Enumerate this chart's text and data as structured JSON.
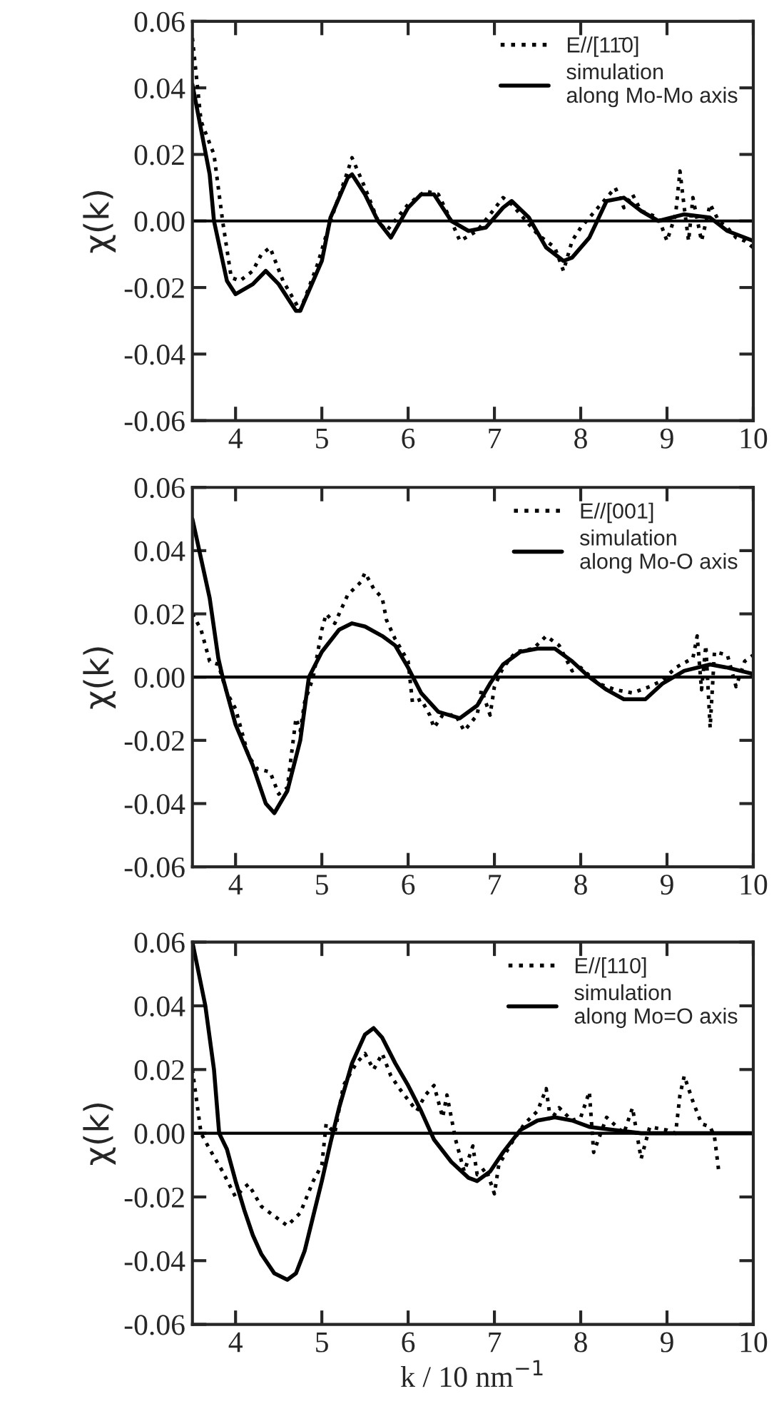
{
  "chart_data": [
    {
      "type": "line",
      "ylabel": "χ(k)",
      "xlim": [
        3.5,
        10
      ],
      "xticks": [
        4,
        5,
        6,
        7,
        8,
        9,
        10
      ],
      "ylim": [
        -0.06,
        0.06
      ],
      "yticks": [
        {
          "value": -0.06,
          "label": "-0.06"
        },
        {
          "value": -0.04,
          "label": "-0.04"
        },
        {
          "value": -0.02,
          "label": "-0.02"
        },
        {
          "value": 0,
          "label": "0.00"
        },
        {
          "value": 0.02,
          "label": "0.02"
        },
        {
          "value": 0.04,
          "label": "0.04"
        },
        {
          "value": 0.06,
          "label": "0.06"
        }
      ],
      "ref_lines": [
        {
          "axis": "y",
          "value": 0,
          "color": "#000000",
          "line_style": "solid"
        }
      ],
      "legend": "top right",
      "grid": false,
      "series": [
        {
          "name": "E//[11̄0]",
          "color": "#000000",
          "line_style": "dotted",
          "x": [
            3.5,
            3.6,
            3.75,
            3.85,
            3.95,
            4.05,
            4.2,
            4.3,
            4.4,
            4.55,
            4.75,
            4.95,
            5.1,
            5.3,
            5.35,
            5.5,
            5.65,
            5.75,
            6.0,
            6.2,
            6.35,
            6.5,
            6.6,
            6.8,
            7.1,
            7.2,
            7.5,
            7.7,
            7.8,
            7.9,
            8.0,
            8.2,
            8.4,
            8.5,
            8.6,
            8.7,
            8.9,
            9.0,
            9.1,
            9.15,
            9.2,
            9.25,
            9.3,
            9.4,
            9.5,
            9.6,
            9.7,
            9.8,
            9.9,
            10
          ],
          "values": [
            0.055,
            0.03,
            0.02,
            0.0,
            -0.017,
            -0.018,
            -0.015,
            -0.01,
            -0.008,
            -0.018,
            -0.027,
            -0.013,
            0.0,
            0.015,
            0.019,
            0.01,
            0.0,
            -0.003,
            0.005,
            0.009,
            0.008,
            0.0,
            -0.006,
            -0.003,
            0.007,
            0.005,
            -0.004,
            -0.008,
            -0.015,
            -0.006,
            -0.002,
            0.004,
            0.01,
            0.004,
            0.008,
            0.003,
            0.001,
            -0.006,
            0.002,
            0.015,
            0.004,
            -0.006,
            0.007,
            -0.006,
            0.005,
            0.0,
            -0.002,
            -0.005,
            -0.006,
            -0.008
          ]
        },
        {
          "name": "simulation\nalong Mo-Mo axis",
          "color": "#000000",
          "line_style": "solid",
          "x": [
            3.5,
            3.7,
            3.75,
            3.9,
            4.0,
            4.2,
            4.35,
            4.5,
            4.7,
            4.75,
            4.9,
            5.0,
            5.1,
            5.3,
            5.35,
            5.5,
            5.65,
            5.8,
            6.0,
            6.15,
            6.3,
            6.5,
            6.7,
            6.9,
            7.1,
            7.2,
            7.4,
            7.6,
            7.8,
            7.9,
            8.1,
            8.3,
            8.5,
            8.7,
            8.9,
            9.2,
            9.5,
            9.7,
            10
          ],
          "values": [
            0.041,
            0.014,
            0.0,
            -0.018,
            -0.022,
            -0.019,
            -0.015,
            -0.019,
            -0.027,
            -0.027,
            -0.018,
            -0.012,
            0.001,
            0.013,
            0.014,
            0.008,
            0.0,
            -0.005,
            0.004,
            0.008,
            0.008,
            0.0,
            -0.003,
            -0.002,
            0.004,
            0.006,
            0.001,
            -0.008,
            -0.012,
            -0.011,
            -0.005,
            0.006,
            0.007,
            0.003,
            0.0,
            0.002,
            0.001,
            -0.003,
            -0.006
          ]
        }
      ]
    },
    {
      "type": "line",
      "ylabel": "χ(k)",
      "xlim": [
        3.5,
        10
      ],
      "xticks": [
        4,
        5,
        6,
        7,
        8,
        9,
        10
      ],
      "ylim": [
        -0.06,
        0.06
      ],
      "yticks": [
        {
          "value": -0.06,
          "label": "-0.06"
        },
        {
          "value": -0.04,
          "label": "-0.04"
        },
        {
          "value": -0.02,
          "label": "-0.02"
        },
        {
          "value": 0,
          "label": "0.00"
        },
        {
          "value": 0.02,
          "label": "0.02"
        },
        {
          "value": 0.04,
          "label": "0.04"
        },
        {
          "value": 0.06,
          "label": "0.06"
        }
      ],
      "ref_lines": [
        {
          "axis": "y",
          "value": 0,
          "color": "#000000",
          "line_style": "solid"
        }
      ],
      "legend": "top right",
      "grid": false,
      "series": [
        {
          "name": "E//[001]",
          "color": "#000000",
          "line_style": "dotted",
          "x": [
            3.5,
            3.6,
            3.7,
            3.8,
            3.9,
            4.0,
            4.15,
            4.25,
            4.4,
            4.5,
            4.6,
            4.7,
            4.75,
            4.8,
            4.9,
            5.0,
            5.05,
            5.15,
            5.3,
            5.45,
            5.5,
            5.6,
            5.7,
            5.75,
            5.85,
            6.0,
            6.05,
            6.15,
            6.25,
            6.3,
            6.4,
            6.55,
            6.65,
            6.8,
            6.85,
            6.95,
            7.0,
            7.1,
            7.25,
            7.45,
            7.6,
            7.75,
            7.9,
            8.0,
            8.2,
            8.4,
            8.6,
            8.8,
            8.95,
            9.1,
            9.3,
            9.35,
            9.4,
            9.45,
            9.5,
            9.55,
            9.7,
            9.8,
            9.9,
            10
          ],
          "values": [
            0.02,
            0.015,
            0.005,
            0.004,
            -0.005,
            -0.01,
            -0.025,
            -0.029,
            -0.03,
            -0.037,
            -0.035,
            -0.013,
            -0.017,
            -0.008,
            0.0,
            0.015,
            0.02,
            0.017,
            0.026,
            0.03,
            0.033,
            0.028,
            0.025,
            0.018,
            0.012,
            0.005,
            -0.008,
            -0.007,
            -0.012,
            -0.016,
            -0.012,
            -0.012,
            -0.017,
            -0.012,
            -0.004,
            -0.012,
            -0.003,
            0.003,
            0.008,
            0.009,
            0.013,
            0.01,
            0.002,
            0.003,
            -0.002,
            -0.004,
            -0.005,
            -0.003,
            -0.001,
            0.003,
            0.006,
            0.013,
            -0.004,
            0.01,
            -0.016,
            0.008,
            0.007,
            -0.003,
            0.005,
            0.007
          ]
        },
        {
          "name": "simulation\nalong Mo-O axis",
          "color": "#000000",
          "line_style": "solid",
          "x": [
            3.5,
            3.7,
            3.8,
            3.85,
            4.0,
            4.2,
            4.35,
            4.45,
            4.6,
            4.75,
            4.85,
            5.0,
            5.2,
            5.35,
            5.5,
            5.7,
            5.85,
            6.0,
            6.15,
            6.35,
            6.6,
            6.8,
            6.95,
            7.1,
            7.3,
            7.5,
            7.7,
            7.9,
            8.1,
            8.3,
            8.5,
            8.75,
            8.95,
            9.2,
            9.5,
            9.7,
            10
          ],
          "values": [
            0.05,
            0.025,
            0.006,
            0.0,
            -0.015,
            -0.028,
            -0.04,
            -0.043,
            -0.036,
            -0.02,
            0.0,
            0.008,
            0.015,
            0.017,
            0.016,
            0.013,
            0.01,
            0.003,
            -0.005,
            -0.011,
            -0.013,
            -0.009,
            -0.002,
            0.004,
            0.008,
            0.009,
            0.009,
            0.005,
            0.0,
            -0.004,
            -0.007,
            -0.007,
            -0.002,
            0.002,
            0.004,
            0.003,
            0.001
          ]
        }
      ]
    },
    {
      "type": "line",
      "ylabel": "χ(k)",
      "xlabel": "k / 10 nm$^{−1}$",
      "xlim": [
        3.5,
        10
      ],
      "xticks": [
        4,
        5,
        6,
        7,
        8,
        9,
        10
      ],
      "ylim": [
        -0.06,
        0.06
      ],
      "yticks": [
        {
          "value": -0.06,
          "label": "-0.06"
        },
        {
          "value": -0.04,
          "label": "-0.04"
        },
        {
          "value": -0.02,
          "label": "-0.02"
        },
        {
          "value": 0,
          "label": "0.00"
        },
        {
          "value": 0.02,
          "label": "0.02"
        },
        {
          "value": 0.04,
          "label": "0.04"
        },
        {
          "value": 0.06,
          "label": "0.06"
        }
      ],
      "ref_lines": [
        {
          "axis": "y",
          "value": 0,
          "color": "#000000",
          "line_style": "solid"
        }
      ],
      "legend": "top right",
      "grid": false,
      "series": [
        {
          "name": "E//[110]",
          "color": "#000000",
          "line_style": "dotted",
          "x": [
            3.5,
            3.55,
            3.6,
            3.7,
            3.85,
            4.0,
            4.1,
            4.15,
            4.3,
            4.5,
            4.6,
            4.75,
            4.9,
            5.0,
            5.05,
            5.15,
            5.25,
            5.4,
            5.5,
            5.6,
            5.7,
            5.8,
            5.9,
            6.1,
            6.2,
            6.3,
            6.4,
            6.45,
            6.55,
            6.65,
            6.75,
            6.8,
            6.9,
            7.0,
            7.05,
            7.2,
            7.35,
            7.5,
            7.6,
            7.65,
            7.75,
            7.9,
            8.0,
            8.1,
            8.15,
            8.3,
            8.5,
            8.6,
            8.7,
            8.8,
            9.0,
            9.1,
            9.15,
            9.2,
            9.3,
            9.4,
            9.5,
            9.55,
            9.6
          ],
          "values": [
            0.02,
            0.01,
            0.0,
            -0.005,
            -0.012,
            -0.02,
            -0.017,
            -0.016,
            -0.023,
            -0.027,
            -0.029,
            -0.025,
            -0.015,
            -0.01,
            0.003,
            0.0,
            0.015,
            0.022,
            0.025,
            0.02,
            0.025,
            0.018,
            0.014,
            0.007,
            0.012,
            0.015,
            0.005,
            0.012,
            -0.002,
            -0.012,
            -0.004,
            -0.013,
            -0.011,
            -0.019,
            -0.01,
            -0.003,
            0.003,
            0.007,
            0.014,
            0.004,
            0.008,
            0.004,
            0.005,
            0.013,
            -0.006,
            0.005,
            0.0,
            0.008,
            -0.008,
            0.002,
            0.001,
            0.0,
            0.012,
            0.018,
            0.01,
            0.003,
            0.002,
            -0.001,
            -0.012
          ]
        },
        {
          "name": "simulation\nalong Mo=O axis",
          "color": "#000000",
          "line_style": "solid",
          "x": [
            3.5,
            3.65,
            3.75,
            3.81,
            3.9,
            4.0,
            4.1,
            4.2,
            4.3,
            4.45,
            4.6,
            4.7,
            4.8,
            4.9,
            5.0,
            5.1,
            5.2,
            5.35,
            5.5,
            5.6,
            5.7,
            5.85,
            6.0,
            6.15,
            6.3,
            6.5,
            6.7,
            6.8,
            6.95,
            7.1,
            7.3,
            7.5,
            7.7,
            7.9,
            8.1,
            8.4,
            8.7,
            9.0,
            9.3,
            9.6,
            10
          ],
          "values": [
            0.06,
            0.04,
            0.02,
            0.0,
            -0.005,
            -0.015,
            -0.024,
            -0.032,
            -0.038,
            -0.044,
            -0.046,
            -0.044,
            -0.037,
            -0.026,
            -0.015,
            -0.003,
            0.008,
            0.022,
            0.031,
            0.033,
            0.03,
            0.022,
            0.015,
            0.007,
            -0.002,
            -0.009,
            -0.014,
            -0.015,
            -0.012,
            -0.006,
            0.001,
            0.004,
            0.005,
            0.004,
            0.002,
            0.001,
            0.0,
            0.0,
            0.0,
            0.0,
            0.0
          ]
        }
      ]
    }
  ]
}
